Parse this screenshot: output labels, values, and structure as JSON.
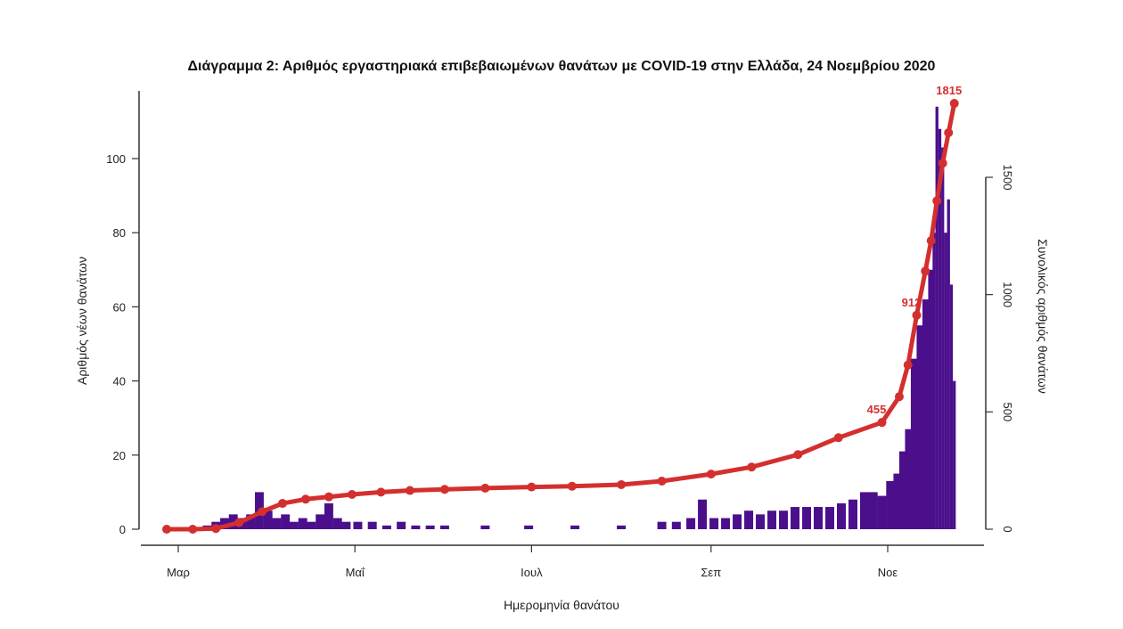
{
  "chart_data": {
    "type": "bar",
    "title": "Διάγραμμα 2: Αριθμός εργαστηριακά επιβεβαιωμένων θανάτων με COVID-19 στην Ελλάδα, 24 Νοεμβρίου 2020",
    "xlabel": "Ημερομηνία θανάτου",
    "ylabel": "Αριθμός νέων θανάτων",
    "y2label": "Συνολικός αριθμός θανάτων",
    "x_tick_labels": [
      "Μαρ",
      "Μαΐ",
      "Ιουλ",
      "Σεπ",
      "Νοε"
    ],
    "y_ticks": [
      0,
      20,
      40,
      60,
      80,
      100
    ],
    "y2_ticks": [
      0,
      500,
      1000,
      1500
    ],
    "ylim": [
      0,
      115
    ],
    "y2lim": [
      0,
      1600
    ],
    "grid": false,
    "bar_color": "#4b0f8c",
    "line_color": "#d42f2f",
    "milestones": [
      {
        "label": "455",
        "date": "2020-10-30"
      },
      {
        "label": "912",
        "date": "2020-11-11"
      },
      {
        "label": "1815",
        "date": "2020-11-24"
      }
    ],
    "series": [
      {
        "name": "Αριθμός νέων θανάτων",
        "type": "bar",
        "x": [
          "2020-02-26",
          "2020-03-01",
          "2020-03-06",
          "2020-03-11",
          "2020-03-14",
          "2020-03-17",
          "2020-03-20",
          "2020-03-23",
          "2020-03-26",
          "2020-03-29",
          "2020-04-01",
          "2020-04-04",
          "2020-04-07",
          "2020-04-10",
          "2020-04-13",
          "2020-04-16",
          "2020-04-19",
          "2020-04-22",
          "2020-04-25",
          "2020-04-28",
          "2020-05-02",
          "2020-05-07",
          "2020-05-12",
          "2020-05-17",
          "2020-05-22",
          "2020-05-27",
          "2020-06-01",
          "2020-06-08",
          "2020-06-15",
          "2020-06-22",
          "2020-06-30",
          "2020-07-08",
          "2020-07-16",
          "2020-07-24",
          "2020-08-01",
          "2020-08-08",
          "2020-08-15",
          "2020-08-20",
          "2020-08-25",
          "2020-08-29",
          "2020-09-02",
          "2020-09-06",
          "2020-09-10",
          "2020-09-14",
          "2020-09-18",
          "2020-09-22",
          "2020-09-26",
          "2020-09-30",
          "2020-10-04",
          "2020-10-08",
          "2020-10-12",
          "2020-10-16",
          "2020-10-20",
          "2020-10-24",
          "2020-10-27",
          "2020-10-30",
          "2020-11-02",
          "2020-11-04",
          "2020-11-06",
          "2020-11-08",
          "2020-11-10",
          "2020-11-12",
          "2020-11-14",
          "2020-11-16",
          "2020-11-17",
          "2020-11-18",
          "2020-11-19",
          "2020-11-20",
          "2020-11-21",
          "2020-11-22",
          "2020-11-23",
          "2020-11-24"
        ],
        "values": [
          0,
          0,
          0,
          1,
          2,
          3,
          4,
          3,
          4,
          10,
          5,
          3,
          4,
          2,
          3,
          2,
          4,
          7,
          3,
          2,
          2,
          2,
          1,
          2,
          1,
          1,
          1,
          0,
          1,
          0,
          1,
          0,
          1,
          0,
          1,
          0,
          2,
          2,
          3,
          8,
          3,
          3,
          4,
          5,
          4,
          5,
          5,
          6,
          6,
          6,
          6,
          7,
          8,
          10,
          10,
          9,
          13,
          15,
          21,
          27,
          46,
          55,
          62,
          70,
          80,
          114,
          108,
          103,
          80,
          89,
          66,
          40
        ]
      },
      {
        "name": "Συνολικός αριθμός θανάτων",
        "type": "line",
        "x": [
          "2020-02-26",
          "2020-03-06",
          "2020-03-14",
          "2020-03-22",
          "2020-03-30",
          "2020-04-06",
          "2020-04-14",
          "2020-04-22",
          "2020-04-30",
          "2020-05-10",
          "2020-05-20",
          "2020-06-01",
          "2020-06-15",
          "2020-07-01",
          "2020-07-15",
          "2020-08-01",
          "2020-08-15",
          "2020-09-01",
          "2020-09-15",
          "2020-10-01",
          "2020-10-15",
          "2020-10-30",
          "2020-11-05",
          "2020-11-08",
          "2020-11-11",
          "2020-11-14",
          "2020-11-16",
          "2020-11-18",
          "2020-11-20",
          "2020-11-22",
          "2020-11-24"
        ],
        "values": [
          0,
          0,
          3,
          28,
          75,
          110,
          128,
          138,
          148,
          158,
          165,
          170,
          175,
          180,
          183,
          190,
          205,
          235,
          265,
          318,
          390,
          455,
          565,
          700,
          912,
          1100,
          1230,
          1400,
          1560,
          1690,
          1815
        ]
      }
    ]
  }
}
